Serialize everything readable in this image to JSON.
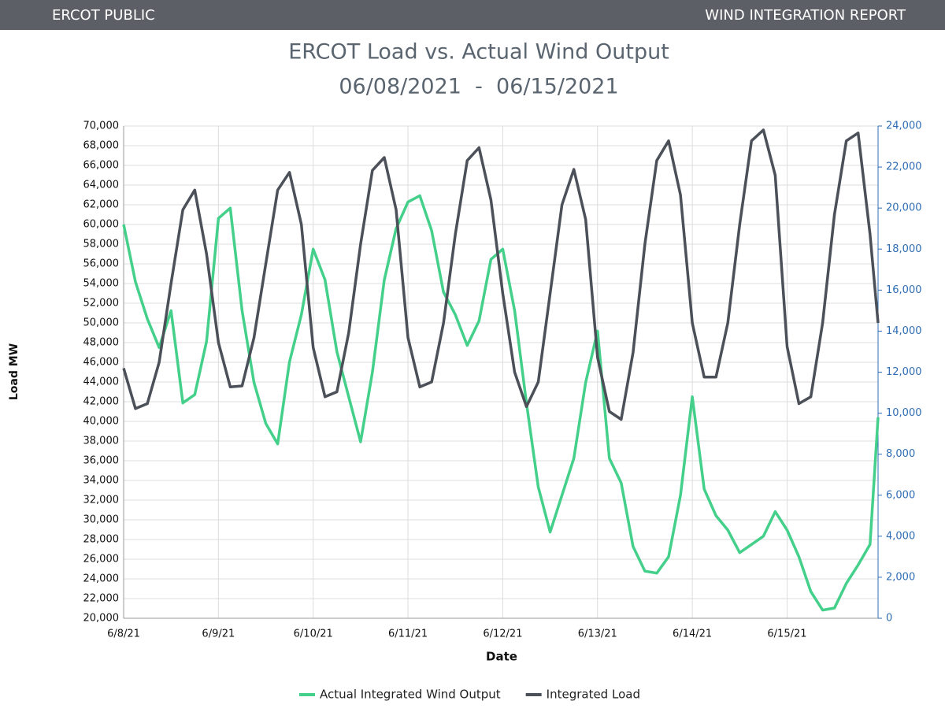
{
  "header": {
    "left": "ERCOT PUBLIC",
    "right": "WIND INTEGRATION REPORT"
  },
  "chart_data": {
    "type": "line",
    "title": "ERCOT Load vs. Actual Wind Output",
    "subtitle": "06/08/2021  -  06/15/2021",
    "x_label": "Date",
    "y_label": "Load MW",
    "x": [
      0,
      0.125,
      0.25,
      0.375,
      0.5,
      0.625,
      0.75,
      0.875,
      1,
      1.125,
      1.25,
      1.375,
      1.5,
      1.625,
      1.75,
      1.875,
      2,
      2.125,
      2.25,
      2.375,
      2.5,
      2.625,
      2.75,
      2.875,
      3,
      3.125,
      3.25,
      3.375,
      3.5,
      3.625,
      3.75,
      3.875,
      4,
      4.125,
      4.25,
      4.375,
      4.5,
      4.625,
      4.75,
      4.875,
      5,
      5.125,
      5.25,
      5.375,
      5.5,
      5.625,
      5.75,
      5.875,
      6,
      6.125,
      6.25,
      6.375,
      6.5,
      6.625,
      6.75,
      6.875,
      7,
      7.125,
      7.25,
      7.375,
      7.5,
      7.625,
      7.75,
      7.875,
      7.96
    ],
    "xlim": [
      0,
      7.96
    ],
    "xticks": [
      {
        "value": 0,
        "label": "6/8/21"
      },
      {
        "value": 1,
        "label": "6/9/21"
      },
      {
        "value": 2,
        "label": "6/10/21"
      },
      {
        "value": 3,
        "label": "6/11/21"
      },
      {
        "value": 4,
        "label": "6/12/21"
      },
      {
        "value": 5,
        "label": "6/13/21"
      },
      {
        "value": 6,
        "label": "6/14/21"
      },
      {
        "value": 7,
        "label": "6/15/21"
      }
    ],
    "ylim": [
      20000,
      70000
    ],
    "yticks": [
      {
        "value": 20000,
        "label": "20,000"
      },
      {
        "value": 22000,
        "label": "22,000"
      },
      {
        "value": 24000,
        "label": "24,000"
      },
      {
        "value": 26000,
        "label": "26,000"
      },
      {
        "value": 28000,
        "label": "28,000"
      },
      {
        "value": 30000,
        "label": "30,000"
      },
      {
        "value": 32000,
        "label": "32,000"
      },
      {
        "value": 34000,
        "label": "34,000"
      },
      {
        "value": 36000,
        "label": "36,000"
      },
      {
        "value": 38000,
        "label": "38,000"
      },
      {
        "value": 40000,
        "label": "40,000"
      },
      {
        "value": 42000,
        "label": "42,000"
      },
      {
        "value": 44000,
        "label": "44,000"
      },
      {
        "value": 46000,
        "label": "46,000"
      },
      {
        "value": 48000,
        "label": "48,000"
      },
      {
        "value": 50000,
        "label": "50,000"
      },
      {
        "value": 52000,
        "label": "52,000"
      },
      {
        "value": 54000,
        "label": "54,000"
      },
      {
        "value": 56000,
        "label": "56,000"
      },
      {
        "value": 58000,
        "label": "58,000"
      },
      {
        "value": 60000,
        "label": "60,000"
      },
      {
        "value": 62000,
        "label": "62,000"
      },
      {
        "value": 64000,
        "label": "64,000"
      },
      {
        "value": 66000,
        "label": "66,000"
      },
      {
        "value": 68000,
        "label": "68,000"
      },
      {
        "value": 70000,
        "label": "70,000"
      }
    ],
    "y2lim": [
      0,
      24000
    ],
    "y2ticks": [
      0,
      {
        "value": 2000,
        "label": "2,000"
      },
      {
        "value": 4000,
        "label": "4,000"
      },
      {
        "value": 6000,
        "label": "6,000"
      },
      {
        "value": 8000,
        "label": "8,000"
      },
      {
        "value": 10000,
        "label": "10,000"
      },
      {
        "value": 12000,
        "label": "12,000"
      },
      {
        "value": 14000,
        "label": "14,000"
      },
      {
        "value": 16000,
        "label": "16,000"
      },
      {
        "value": 18000,
        "label": "18,000"
      },
      {
        "value": 20000,
        "label": "20,000"
      },
      {
        "value": 22000,
        "label": "22,000"
      },
      {
        "value": 24000,
        "label": "24,000"
      }
    ],
    "grid": true,
    "legend": "bottom",
    "series": [
      {
        "name": "Actual Integrated Wind Output",
        "color": "#44d08a",
        "axis": "y2",
        "values": [
          19200,
          16400,
          14600,
          13200,
          15000,
          10500,
          10900,
          13500,
          19500,
          20000,
          15000,
          11500,
          9500,
          8500,
          12500,
          14800,
          18000,
          16500,
          13000,
          10800,
          8600,
          12000,
          16500,
          19000,
          20300,
          20600,
          18900,
          15900,
          14800,
          13300,
          14500,
          17500,
          18000,
          15000,
          10500,
          6400,
          4200,
          6000,
          7800,
          11500,
          14000,
          7800,
          6600,
          3500,
          2300,
          2200,
          3000,
          6000,
          10800,
          6300,
          5000,
          4300,
          3200,
          3600,
          4000,
          5200,
          4300,
          3000,
          1300,
          400,
          500,
          1700,
          2600,
          3600,
          9800
        ]
      },
      {
        "name": "Integrated Load",
        "color": "#4b5059",
        "values": [
          45400,
          41300,
          41800,
          46000,
          54000,
          61500,
          63500,
          57000,
          48000,
          43500,
          43600,
          48500,
          56000,
          63500,
          65300,
          60000,
          47500,
          42500,
          43000,
          49000,
          58000,
          65500,
          66800,
          61500,
          48500,
          43500,
          44000,
          50000,
          59000,
          66500,
          67800,
          62500,
          53000,
          45000,
          41500,
          44000,
          53000,
          62000,
          65600,
          60500,
          46500,
          41000,
          40200,
          47000,
          58000,
          66500,
          68500,
          63000,
          50000,
          44500,
          44500,
          50000,
          60000,
          68500,
          69600,
          65000,
          47600,
          41800,
          42500,
          50000,
          61000,
          68500,
          69300,
          59000,
          50000
        ]
      }
    ]
  }
}
